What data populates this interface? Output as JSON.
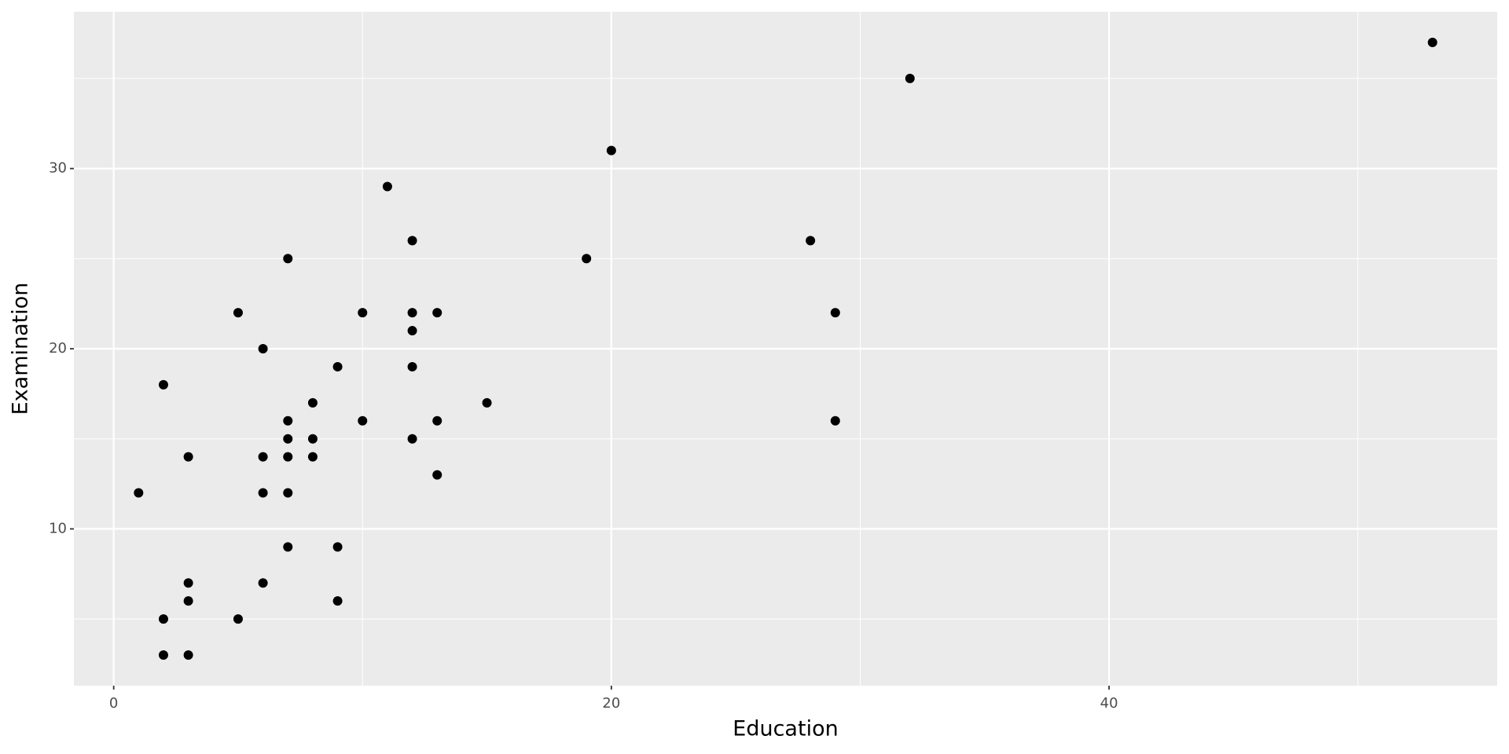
{
  "chart_data": {
    "type": "scatter",
    "x_label": "Education",
    "y_label": "Examination",
    "x": [
      1,
      2,
      2,
      2,
      3,
      3,
      3,
      3,
      5,
      5,
      6,
      6,
      6,
      6,
      7,
      7,
      7,
      7,
      7,
      7,
      8,
      8,
      8,
      9,
      9,
      9,
      10,
      10,
      11,
      12,
      12,
      12,
      12,
      12,
      13,
      13,
      13,
      15,
      19,
      20,
      28,
      29,
      29,
      32,
      53
    ],
    "y": [
      12,
      18,
      5,
      3,
      14,
      7,
      6,
      3,
      22,
      5,
      20,
      14,
      12,
      7,
      25,
      16,
      15,
      14,
      12,
      9,
      17,
      15,
      14,
      19,
      9,
      6,
      22,
      16,
      29,
      26,
      22,
      21,
      19,
      15,
      22,
      16,
      13,
      17,
      25,
      31,
      26,
      22,
      16,
      35,
      37
    ],
    "color": "#000000",
    "xlim": [
      -1.6,
      55.6
    ],
    "ylim": [
      1.3,
      38.7
    ],
    "xticks": [
      0,
      20,
      40
    ],
    "yticks": [
      10,
      20,
      30
    ],
    "x_minor_breaks": [
      10,
      30,
      50
    ],
    "y_minor_breaks": [
      5,
      15,
      25,
      35
    ],
    "grid": true
  }
}
